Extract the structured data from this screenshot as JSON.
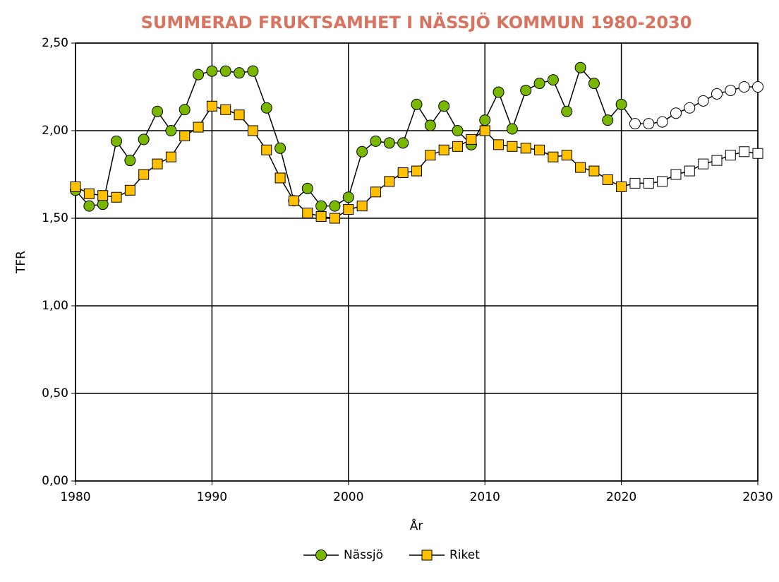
{
  "chart_data": {
    "type": "line",
    "title": "SUMMERAD FRUKTSAMHET I NÄSSJÖ KOMMUN 1980-2030",
    "x_label": "År",
    "y_label": "TFR",
    "x": [
      1980,
      1981,
      1982,
      1983,
      1984,
      1985,
      1986,
      1987,
      1988,
      1989,
      1990,
      1991,
      1992,
      1993,
      1994,
      1995,
      1996,
      1997,
      1998,
      1999,
      2000,
      2001,
      2002,
      2003,
      2004,
      2005,
      2006,
      2007,
      2008,
      2009,
      2010,
      2011,
      2012,
      2013,
      2014,
      2015,
      2016,
      2017,
      2018,
      2019,
      2020,
      2021,
      2022,
      2023,
      2024,
      2025,
      2026,
      2027,
      2028,
      2029,
      2030
    ],
    "series": [
      {
        "name": "Nässjö",
        "color": "#7ab800",
        "marker": "circle",
        "values": [
          1.66,
          1.57,
          1.58,
          1.94,
          1.83,
          1.95,
          2.11,
          2.0,
          2.12,
          2.32,
          2.34,
          2.34,
          2.33,
          2.34,
          2.13,
          1.9,
          1.6,
          1.67,
          1.57,
          1.57,
          1.62,
          1.88,
          1.94,
          1.93,
          1.93,
          2.15,
          2.03,
          2.14,
          2.0,
          1.92,
          2.06,
          2.22,
          2.01,
          2.23,
          2.27,
          2.29,
          2.11,
          2.36,
          2.27,
          2.06,
          2.15,
          2.04,
          2.04,
          2.05,
          2.1,
          2.13,
          2.17,
          2.21,
          2.23,
          2.25,
          2.25
        ]
      },
      {
        "name": "Riket",
        "color": "#ffc000",
        "marker": "square",
        "values": [
          1.68,
          1.64,
          1.63,
          1.62,
          1.66,
          1.75,
          1.81,
          1.85,
          1.97,
          2.02,
          2.14,
          2.12,
          2.09,
          2.0,
          1.89,
          1.73,
          1.6,
          1.53,
          1.51,
          1.5,
          1.55,
          1.57,
          1.65,
          1.71,
          1.76,
          1.77,
          1.86,
          1.89,
          1.91,
          1.95,
          2.0,
          1.92,
          1.91,
          1.9,
          1.89,
          1.85,
          1.86,
          1.79,
          1.77,
          1.72,
          1.68,
          1.7,
          1.7,
          1.71,
          1.75,
          1.77,
          1.81,
          1.83,
          1.86,
          1.88,
          1.87
        ]
      }
    ],
    "forecast_from": 2021,
    "forecast_color": "#ffffff",
    "xlim": [
      1980,
      2030
    ],
    "xticks": [
      1980,
      1990,
      2000,
      2010,
      2020,
      2030
    ],
    "ylim": [
      0,
      2.5
    ],
    "yticks": [
      {
        "value": 0,
        "label": "0,00"
      },
      {
        "value": 0.5,
        "label": "0,50"
      },
      {
        "value": 1,
        "label": "1,00"
      },
      {
        "value": 1.5,
        "label": "1,50"
      },
      {
        "value": 2,
        "label": "2,00"
      },
      {
        "value": 2.5,
        "label": "2,50"
      }
    ],
    "grid": true,
    "legend": "bottom"
  }
}
